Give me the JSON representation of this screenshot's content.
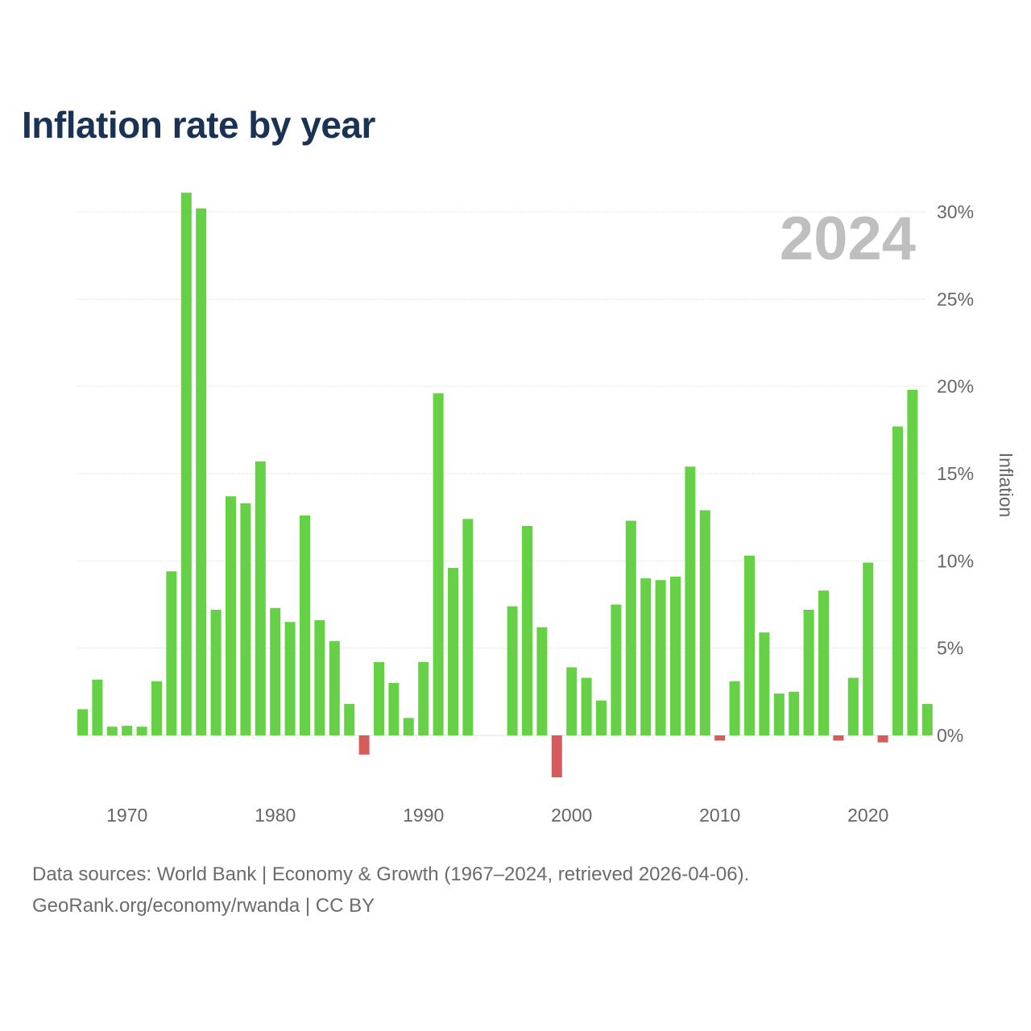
{
  "title": "Inflation rate by year",
  "source": {
    "line1": "Data sources: World Bank | Economy & Growth (1967–2024, retrieved 2026-04-06).",
    "line2": "GeoRank.org/economy/rwanda | CC BY"
  },
  "colors": {
    "positive": "#66d046",
    "negative": "#d65c5c",
    "grid": "#e6e6e6",
    "title": "#1a3355",
    "watermark": "#bfbfbf"
  },
  "chart_data": {
    "type": "bar",
    "title": "Inflation rate by year",
    "xlabel": "",
    "ylabel": "Inflation",
    "highlight_year": "2024",
    "ylim": [
      -3,
      30
    ],
    "yticks": [
      0,
      5,
      10,
      15,
      20,
      25,
      30
    ],
    "ytick_labels": [
      "0%",
      "5%",
      "10%",
      "15%",
      "20%",
      "25%",
      "30%"
    ],
    "xticks": [
      1970,
      1980,
      1990,
      2000,
      2010,
      2020
    ],
    "xtick_labels": [
      "1970",
      "1980",
      "1990",
      "2000",
      "2010",
      "2020"
    ],
    "legend": "none",
    "grid": true,
    "years": [
      1967,
      1968,
      1969,
      1970,
      1971,
      1972,
      1973,
      1974,
      1975,
      1976,
      1977,
      1978,
      1979,
      1980,
      1981,
      1982,
      1983,
      1984,
      1985,
      1986,
      1987,
      1988,
      1989,
      1990,
      1991,
      1992,
      1993,
      1994,
      1995,
      1996,
      1997,
      1998,
      1999,
      2000,
      2001,
      2002,
      2003,
      2004,
      2005,
      2006,
      2007,
      2008,
      2009,
      2010,
      2011,
      2012,
      2013,
      2014,
      2015,
      2016,
      2017,
      2018,
      2019,
      2020,
      2021,
      2022,
      2023,
      2024
    ],
    "values": [
      1.5,
      3.2,
      0.5,
      0.55,
      0.5,
      3.1,
      9.4,
      31.1,
      30.2,
      7.2,
      13.7,
      13.3,
      15.7,
      7.3,
      6.5,
      12.6,
      6.6,
      5.4,
      1.8,
      -1.1,
      4.2,
      3.0,
      1.0,
      4.2,
      19.6,
      9.6,
      12.4,
      null,
      null,
      7.4,
      12.0,
      6.2,
      -2.4,
      3.9,
      3.3,
      2.0,
      7.5,
      12.3,
      9.0,
      8.9,
      9.1,
      15.4,
      12.9,
      -0.3,
      3.1,
      10.3,
      5.9,
      2.4,
      2.5,
      7.2,
      8.3,
      -0.3,
      3.3,
      9.9,
      -0.4,
      17.7,
      19.8,
      1.8
    ]
  }
}
